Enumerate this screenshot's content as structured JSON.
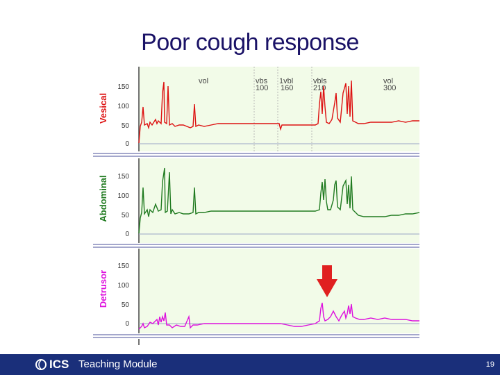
{
  "slide": {
    "title": "Poor cough response",
    "page_number": "19"
  },
  "footer": {
    "logo_text": "ICS",
    "module_label": "Teaching Module",
    "background": "#1a2f7a"
  },
  "channels": [
    {
      "name": "Vesical",
      "color": "#dd1111",
      "ticks": [
        "150",
        "100",
        "50",
        "0"
      ]
    },
    {
      "name": "Abdominal",
      "color": "#1f7a1f",
      "ticks": [
        "150",
        "100",
        "50",
        "0"
      ]
    },
    {
      "name": "Detrusor",
      "color": "#dd11dd",
      "ticks": [
        "150",
        "100",
        "50",
        "0"
      ]
    }
  ],
  "annotations": [
    {
      "top": "vol",
      "bottom": ""
    },
    {
      "top": "vbs",
      "bottom": "100"
    },
    {
      "top": "1vbl",
      "bottom": "160"
    },
    {
      "top": "vbls",
      "bottom": "210"
    },
    {
      "top": "vol",
      "bottom": "300"
    }
  ],
  "arrow_color": "#e02020"
}
